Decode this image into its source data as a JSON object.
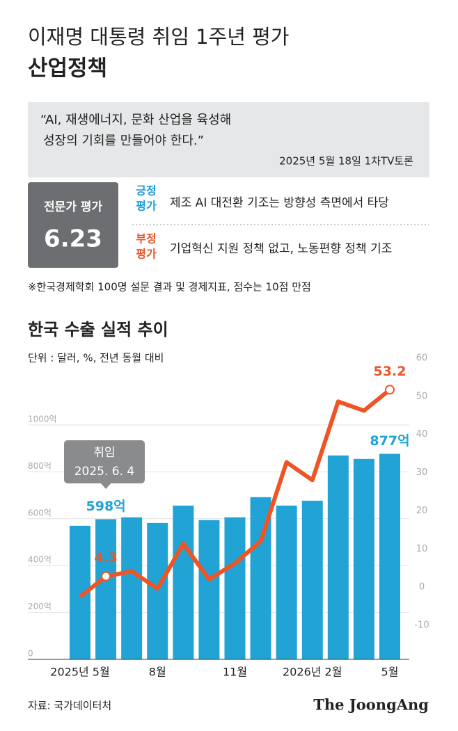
{
  "header": {
    "title": "이재명 대통령 취임 1주년 평가",
    "subtitle": "산업정책"
  },
  "quote": {
    "lines": [
      "“AI, 재생에너지, 문화 산업을 육성해",
      "성장의 기회를 만들어야 한다.”"
    ],
    "source": "2025년 5월 18일 1차TV토론"
  },
  "evaluation": {
    "label": "전문가 평가",
    "score": 6.23,
    "positive": {
      "label": [
        "긍정",
        "평가"
      ],
      "text": "제조 AI 대전환 기조는 방향성 측면에서 타당"
    },
    "negative": {
      "label": [
        "부정",
        "평가"
      ],
      "text": "기업혁신 지원 정책 없고, 노동편향 정책 기조"
    }
  },
  "footnote": "※한국경제학회 100명 설문 결과 및 경제지표, 점수는 10점 만점",
  "chart_data": {
    "type": "bar",
    "title": "한국 수출 실적 추이",
    "unit": "단위 : 달러, %, 전년 동월 대비",
    "categories": [
      "2025년 5월",
      null,
      null,
      "8월",
      null,
      null,
      "11월",
      null,
      null,
      "2026년 2월",
      null,
      null,
      "5월"
    ],
    "series": [
      {
        "type": "bar",
        "color": "#22a3d6",
        "values": [
          570,
          598,
          606,
          582,
          656,
          594,
          606,
          692,
          656,
          677,
          870,
          855,
          877
        ],
        "value_labels": [
          null,
          "598억",
          null,
          null,
          null,
          null,
          null,
          null,
          null,
          null,
          null,
          null,
          "877억"
        ]
      },
      {
        "type": "line",
        "axis": "y2",
        "color": "#ee5525",
        "values": [
          -1.1,
          4.3,
          5.6,
          1.1,
          12.8,
          3.5,
          7.7,
          13.5,
          34.2,
          29.5,
          50.1,
          47.7,
          53.2
        ],
        "value_labels": [
          null,
          "4.3",
          null,
          null,
          null,
          null,
          null,
          null,
          null,
          null,
          null,
          null,
          "53.2"
        ]
      }
    ],
    "ylim": [
      0,
      1000
    ],
    "yticks": [
      0,
      {
        "value": 200,
        "label": "200억"
      },
      {
        "value": 400,
        "label": "400억"
      },
      {
        "value": 600,
        "label": "600억"
      },
      {
        "value": 800,
        "label": "800억"
      },
      {
        "value": 1000,
        "label": "1000억"
      }
    ],
    "y2lim": [
      -10,
      60
    ],
    "y2ticks": [
      -10,
      0,
      10,
      20,
      30,
      40,
      50,
      60
    ],
    "grid": true,
    "annotation": {
      "lines": [
        "취임",
        "2025. 6. 4"
      ],
      "index": 1
    }
  },
  "source": "자료: 국가데이터처",
  "logo": "The JoongAng"
}
